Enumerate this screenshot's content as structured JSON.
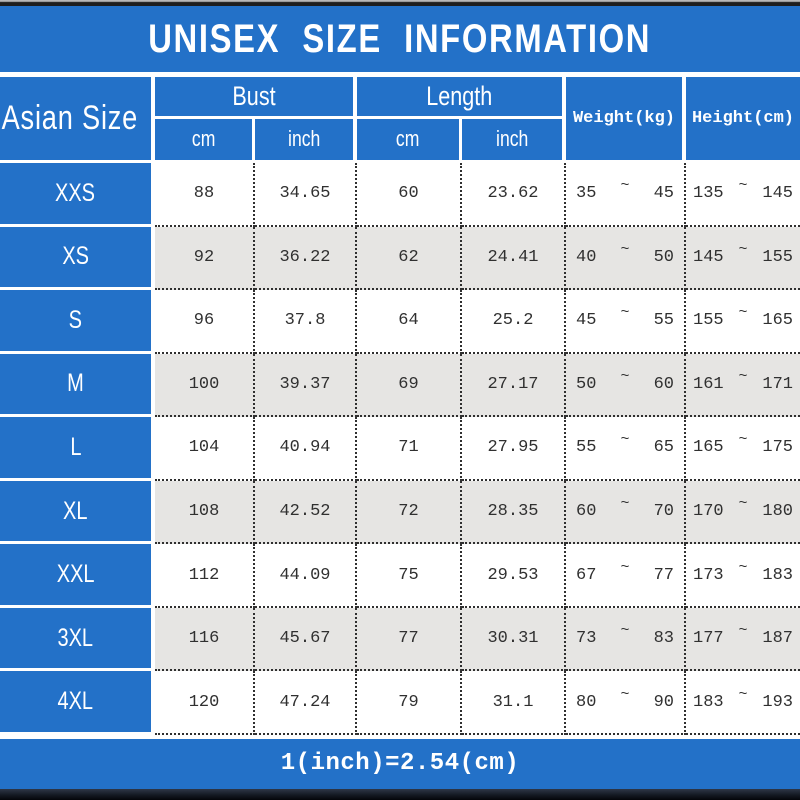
{
  "title": "UNISEX SIZE INFORMATION",
  "footer_note": "1(inch)=2.54(cm)",
  "tilde": "~",
  "header": {
    "size_col": "Asian Size",
    "bust": "Bust",
    "length": "Length",
    "weight": "Weight(kg)",
    "height": "Height(cm)",
    "cm": "cm",
    "inch": "inch"
  },
  "colors": {
    "blue": "#2371c8",
    "stripe_gray": "#e6e5e3",
    "text_dark": "#303030",
    "separator_white": "#ffffff"
  },
  "table": {
    "rows": [
      {
        "size": "XXS",
        "bust_cm": "88",
        "bust_inch": "34.65",
        "length_cm": "60",
        "length_inch": "23.62",
        "weight_min": "35",
        "weight_max": "45",
        "height_min": "135",
        "height_max": "145"
      },
      {
        "size": "XS",
        "bust_cm": "92",
        "bust_inch": "36.22",
        "length_cm": "62",
        "length_inch": "24.41",
        "weight_min": "40",
        "weight_max": "50",
        "height_min": "145",
        "height_max": "155"
      },
      {
        "size": "S",
        "bust_cm": "96",
        "bust_inch": "37.8",
        "length_cm": "64",
        "length_inch": "25.2",
        "weight_min": "45",
        "weight_max": "55",
        "height_min": "155",
        "height_max": "165"
      },
      {
        "size": "M",
        "bust_cm": "100",
        "bust_inch": "39.37",
        "length_cm": "69",
        "length_inch": "27.17",
        "weight_min": "50",
        "weight_max": "60",
        "height_min": "161",
        "height_max": "171"
      },
      {
        "size": "L",
        "bust_cm": "104",
        "bust_inch": "40.94",
        "length_cm": "71",
        "length_inch": "27.95",
        "weight_min": "55",
        "weight_max": "65",
        "height_min": "165",
        "height_max": "175"
      },
      {
        "size": "XL",
        "bust_cm": "108",
        "bust_inch": "42.52",
        "length_cm": "72",
        "length_inch": "28.35",
        "weight_min": "60",
        "weight_max": "70",
        "height_min": "170",
        "height_max": "180"
      },
      {
        "size": "XXL",
        "bust_cm": "112",
        "bust_inch": "44.09",
        "length_cm": "75",
        "length_inch": "29.53",
        "weight_min": "67",
        "weight_max": "77",
        "height_min": "173",
        "height_max": "183"
      },
      {
        "size": "3XL",
        "bust_cm": "116",
        "bust_inch": "45.67",
        "length_cm": "77",
        "length_inch": "30.31",
        "weight_min": "73",
        "weight_max": "83",
        "height_min": "177",
        "height_max": "187"
      },
      {
        "size": "4XL",
        "bust_cm": "120",
        "bust_inch": "47.24",
        "length_cm": "79",
        "length_inch": "31.1",
        "weight_min": "80",
        "weight_max": "90",
        "height_min": "183",
        "height_max": "193"
      }
    ]
  },
  "chart_data": {
    "type": "table",
    "title": "UNISEX SIZE INFORMATION",
    "columns": [
      "Asian Size",
      "Bust (cm)",
      "Bust (inch)",
      "Length (cm)",
      "Length (inch)",
      "Weight (kg)",
      "Height (cm)"
    ],
    "rows": [
      [
        "XXS",
        88,
        34.65,
        60,
        23.62,
        "35~45",
        "135~145"
      ],
      [
        "XS",
        92,
        36.22,
        62,
        24.41,
        "40~50",
        "145~155"
      ],
      [
        "S",
        96,
        37.8,
        64,
        25.2,
        "45~55",
        "155~165"
      ],
      [
        "M",
        100,
        39.37,
        69,
        27.17,
        "50~60",
        "161~171"
      ],
      [
        "L",
        104,
        40.94,
        71,
        27.95,
        "55~65",
        "165~175"
      ],
      [
        "XL",
        108,
        42.52,
        72,
        28.35,
        "60~70",
        "170~180"
      ],
      [
        "XXL",
        112,
        44.09,
        75,
        29.53,
        "67~77",
        "173~183"
      ],
      [
        "3XL",
        116,
        45.67,
        77,
        30.31,
        "73~83",
        "177~187"
      ],
      [
        "4XL",
        120,
        47.24,
        79,
        31.1,
        "80~90",
        "183~193"
      ]
    ],
    "footnote": "1(inch)=2.54(cm)",
    "layout": {
      "grid": "dotted black row/column separators on white/gray striped rows",
      "header_background": "#2371c8",
      "legend_position": "none"
    }
  }
}
